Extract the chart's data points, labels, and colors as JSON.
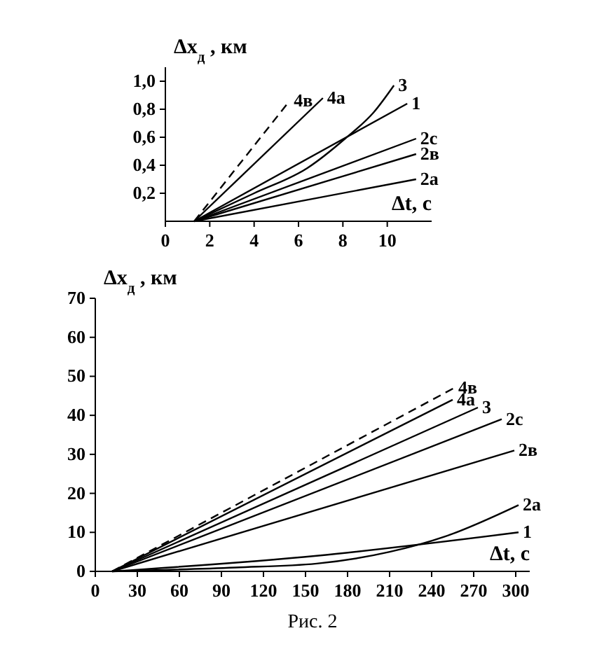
{
  "chart_data": [
    {
      "type": "line",
      "xlabel": "Δt, с",
      "ylabel": "Δx$_{д}$, км",
      "xlim": [
        0,
        12
      ],
      "ylim": [
        0,
        1.1
      ],
      "xticks": [
        0,
        2,
        4,
        6,
        8,
        10
      ],
      "yticks": [
        {
          "value": 0.2,
          "label": "0,2"
        },
        {
          "value": 0.4,
          "label": "0,4"
        },
        {
          "value": 0.6,
          "label": "0,6"
        },
        {
          "value": 0.8,
          "label": "0,8"
        },
        {
          "value": 1.0,
          "label": "1,0"
        }
      ],
      "series": [
        {
          "name": "4в",
          "color": "#000000",
          "line_style": "dashed",
          "x": [
            1.3,
            5.6
          ],
          "values": [
            0,
            0.86
          ]
        },
        {
          "name": "4а",
          "color": "#000000",
          "line_style": "solid",
          "x": [
            1.3,
            7.1
          ],
          "values": [
            0,
            0.88
          ]
        },
        {
          "name": "3",
          "color": "#000000",
          "line_style": "solid",
          "x": [
            1.3,
            4,
            6.4,
            8.1,
            9.4,
            10.3
          ],
          "values": [
            0,
            0.2,
            0.38,
            0.59,
            0.78,
            0.97
          ]
        },
        {
          "name": "1",
          "color": "#000000",
          "line_style": "solid",
          "x": [
            1.3,
            10.9
          ],
          "values": [
            0,
            0.84
          ]
        },
        {
          "name": "2с",
          "color": "#000000",
          "line_style": "solid",
          "x": [
            1.3,
            11.3
          ],
          "values": [
            0,
            0.59
          ]
        },
        {
          "name": "2в",
          "color": "#000000",
          "line_style": "solid",
          "x": [
            1.3,
            11.3
          ],
          "values": [
            0,
            0.48
          ]
        },
        {
          "name": "2а",
          "color": "#000000",
          "line_style": "solid",
          "x": [
            1.3,
            11.3
          ],
          "values": [
            0,
            0.3
          ]
        }
      ]
    },
    {
      "type": "line",
      "xlabel": "Δt, с",
      "ylabel": "Δx$_{д}$, км",
      "xlim": [
        0,
        310
      ],
      "ylim": [
        0,
        70
      ],
      "xticks": [
        0,
        30,
        60,
        90,
        120,
        150,
        180,
        210,
        240,
        270,
        300
      ],
      "yticks": [
        0,
        10,
        20,
        30,
        40,
        50,
        60,
        70
      ],
      "annotations": [
        "Рис. 2"
      ],
      "series": [
        {
          "name": "4в",
          "color": "#000000",
          "line_style": "dashed",
          "x": [
            12,
            256
          ],
          "values": [
            0,
            47
          ]
        },
        {
          "name": "4а",
          "color": "#000000",
          "line_style": "solid",
          "x": [
            12,
            255
          ],
          "values": [
            0,
            44
          ]
        },
        {
          "name": "3",
          "color": "#000000",
          "line_style": "solid",
          "x": [
            12,
            273
          ],
          "values": [
            0,
            42
          ]
        },
        {
          "name": "2с",
          "color": "#000000",
          "line_style": "solid",
          "x": [
            12,
            290
          ],
          "values": [
            0,
            39
          ]
        },
        {
          "name": "2в",
          "color": "#000000",
          "line_style": "solid",
          "x": [
            12,
            299
          ],
          "values": [
            0,
            31
          ]
        },
        {
          "name": "2а",
          "color": "#000000",
          "line_style": "solid",
          "x": [
            12,
            100,
            158,
            210,
            250,
            302
          ],
          "values": [
            0,
            1,
            2,
            5,
            9,
            17
          ]
        },
        {
          "name": "1",
          "color": "#000000",
          "line_style": "solid",
          "x": [
            12,
            158,
            302
          ],
          "values": [
            0,
            4,
            10
          ]
        }
      ]
    }
  ]
}
